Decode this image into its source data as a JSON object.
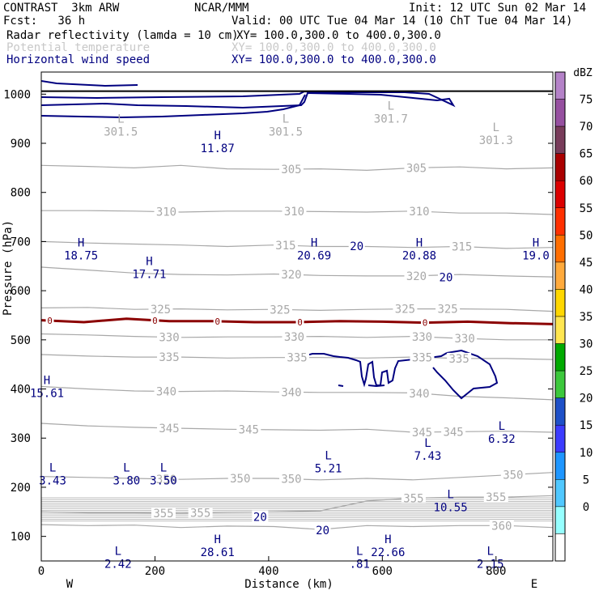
{
  "header": {
    "title": "CONTRAST  3km ARW",
    "center": "NCAR/MMM",
    "init": "Init: 12 UTC Sun 02 Mar 14",
    "fcst": "Fcst:   36 h",
    "valid": "Valid: 00 UTC Tue 04 Mar 14 (10 ChT Tue 04 Mar 14)",
    "fields": [
      {
        "label": "Radar reflectivity (lamda = 10 cm)",
        "xy": "XY= 100.0,300.0 to 400.0,300.0",
        "color": "#000000"
      },
      {
        "label": "Potential temperature",
        "xy": "XY= 100.0,300.0 to 400.0,300.0",
        "color": "#c8c8c8"
      },
      {
        "label": "Horizontal wind speed",
        "xy": "XY= 100.0,300.0 to 400.0,300.0",
        "color": "#000080"
      }
    ]
  },
  "chart_data": {
    "type": "cross-section contour",
    "xlabel": "Distance (km)",
    "ylabel": "Pressure (hPa)",
    "xlim": [
      0,
      900
    ],
    "ylim": [
      1045,
      50
    ],
    "x_ticks": [
      0,
      200,
      400,
      600,
      800
    ],
    "y_ticks": [
      100,
      200,
      300,
      400,
      500,
      600,
      700,
      800,
      900,
      1000
    ],
    "x_end_labels": {
      "left": "W",
      "right": "E"
    },
    "surface_pressure": 1006,
    "theta_contours": [
      {
        "value": "305",
        "p": [
          855,
          853,
          850,
          855,
          848,
          847,
          848,
          845,
          850,
          852,
          848,
          850
        ],
        "labels": [
          {
            "x": 440,
            "text": "305"
          },
          {
            "x": 660,
            "text": "305"
          }
        ]
      },
      {
        "value": "310",
        "p": [
          763,
          763,
          762,
          760,
          762,
          762,
          761,
          760,
          762,
          758,
          758,
          755
        ],
        "labels": [
          {
            "x": 220,
            "text": "310"
          },
          {
            "x": 445,
            "text": "310"
          },
          {
            "x": 665,
            "text": "310"
          }
        ]
      },
      {
        "value": "315",
        "p": [
          700,
          697,
          695,
          693,
          690,
          693,
          690,
          690,
          688,
          690,
          686,
          688
        ],
        "labels": [
          {
            "x": 430,
            "text": "315"
          },
          {
            "x": 740,
            "text": "315"
          }
        ]
      },
      {
        "value": "320",
        "p": [
          648,
          642,
          636,
          633,
          632,
          634,
          631,
          630,
          630,
          633,
          630,
          628
        ],
        "labels": [
          {
            "x": 440,
            "text": "320"
          },
          {
            "x": 660,
            "text": "320"
          }
        ]
      },
      {
        "value": "325",
        "p": [
          565,
          566,
          562,
          563,
          561,
          562,
          560,
          562,
          563,
          563,
          562,
          558
        ],
        "labels": [
          {
            "x": 210,
            "text": "325"
          },
          {
            "x": 420,
            "text": "325"
          },
          {
            "x": 640,
            "text": "325"
          },
          {
            "x": 715,
            "text": "325"
          }
        ]
      },
      {
        "value": "330",
        "p": [
          512,
          510,
          507,
          505,
          506,
          506,
          507,
          505,
          507,
          503,
          500,
          500
        ],
        "labels": [
          {
            "x": 225,
            "text": "330"
          },
          {
            "x": 445,
            "text": "330"
          },
          {
            "x": 670,
            "text": "330"
          },
          {
            "x": 745,
            "text": "330"
          }
        ]
      },
      {
        "value": "335",
        "p": [
          470,
          467,
          465,
          465,
          463,
          464,
          464,
          463,
          465,
          462,
          462,
          460
        ],
        "labels": [
          {
            "x": 225,
            "text": "335"
          },
          {
            "x": 450,
            "text": "335"
          },
          {
            "x": 670,
            "text": "335"
          },
          {
            "x": 735,
            "text": "335"
          }
        ]
      },
      {
        "value": "340",
        "p": [
          405,
          400,
          396,
          395,
          396,
          394,
          393,
          393,
          392,
          385,
          382,
          378
        ],
        "labels": [
          {
            "x": 220,
            "text": "340"
          },
          {
            "x": 440,
            "text": "340"
          },
          {
            "x": 665,
            "text": "340"
          }
        ]
      },
      {
        "value": "345",
        "p": [
          330,
          325,
          322,
          320,
          318,
          317,
          316,
          318,
          312,
          313,
          314,
          312
        ],
        "labels": [
          {
            "x": 225,
            "text": "345"
          },
          {
            "x": 365,
            "text": "345"
          },
          {
            "x": 670,
            "text": "345"
          },
          {
            "x": 725,
            "text": "345"
          }
        ]
      },
      {
        "value": "350",
        "p": [
          222,
          220,
          218,
          216,
          218,
          218,
          215,
          218,
          215,
          220,
          225,
          230
        ],
        "labels": [
          {
            "x": 220,
            "text": "350"
          },
          {
            "x": 350,
            "text": "350"
          },
          {
            "x": 440,
            "text": "350"
          },
          {
            "x": 830,
            "text": "350"
          }
        ]
      },
      {
        "value": "355",
        "p": [
          150,
          148,
          148,
          147,
          149,
          150,
          152,
          172,
          178,
          180,
          180,
          183
        ],
        "labels": [
          {
            "x": 215,
            "text": "355"
          },
          {
            "x": 280,
            "text": "355"
          },
          {
            "x": 655,
            "text": "355"
          },
          {
            "x": 800,
            "text": "355"
          }
        ]
      },
      {
        "value": "360",
        "p": [
          124,
          122,
          123,
          118,
          121,
          120,
          114,
          122,
          120,
          122,
          122,
          118
        ],
        "labels": [
          {
            "x": 810,
            "text": "360"
          }
        ]
      }
    ],
    "theta_extrema": [
      {
        "type": "L",
        "x": 140,
        "p": 942,
        "value": "301.5"
      },
      {
        "type": "L",
        "x": 430,
        "p": 942,
        "value": "301.5"
      },
      {
        "type": "L",
        "x": 615,
        "p": 968,
        "value": "301.7"
      },
      {
        "type": "L",
        "x": 800,
        "p": 925,
        "value": "301.3"
      }
    ],
    "wind_contours": [
      {
        "value": "20",
        "labels": [
          {
            "x": 385,
            "p": 140,
            "text": "20"
          },
          {
            "x": 495,
            "p": 113,
            "text": "20"
          },
          {
            "x": 555,
            "p": 691,
            "text": "20"
          },
          {
            "x": 712,
            "p": 627,
            "text": "20"
          }
        ]
      }
    ],
    "wind_extrema": [
      {
        "type": "L",
        "x": 135,
        "p": 62,
        "value": "2.42"
      },
      {
        "type": "H",
        "x": 310,
        "p": 86,
        "value": "28.61"
      },
      {
        "type": "L",
        "x": 560,
        "p": 62,
        "value": ".81"
      },
      {
        "type": "H",
        "x": 610,
        "p": 86,
        "value": "22.66"
      },
      {
        "type": "L",
        "x": 790,
        "p": 62,
        "value": "2.15"
      },
      {
        "type": "L",
        "x": 720,
        "p": 178,
        "value": "10.55"
      },
      {
        "type": "L",
        "x": 20,
        "p": 232,
        "value": "3.43"
      },
      {
        "type": "L",
        "x": 150,
        "p": 232,
        "value": "3.80"
      },
      {
        "type": "L",
        "x": 215,
        "p": 232,
        "value": "3.50"
      },
      {
        "type": "L",
        "x": 505,
        "p": 257,
        "value": "5.21"
      },
      {
        "type": "L",
        "x": 680,
        "p": 282,
        "value": "7.43"
      },
      {
        "type": "L",
        "x": 810,
        "p": 317,
        "value": "6.32"
      },
      {
        "type": "H",
        "x": 10,
        "p": 410,
        "value": "15.61"
      },
      {
        "type": "H",
        "x": 190,
        "p": 652,
        "value": "17.71"
      },
      {
        "type": "H",
        "x": 70,
        "p": 690,
        "value": "18.75"
      },
      {
        "type": "H",
        "x": 480,
        "p": 690,
        "value": "20.69"
      },
      {
        "type": "H",
        "x": 665,
        "p": 690,
        "value": "20.88"
      },
      {
        "type": "H",
        "x": 870,
        "p": 690,
        "value": "19.0"
      },
      {
        "type": "H",
        "x": 310,
        "p": 908,
        "value": "11.87"
      }
    ],
    "reflectivity_contours": [
      {
        "value": "0",
        "color": "#8b0000",
        "p": [
          540,
          536,
          543,
          538,
          538,
          536,
          536,
          538,
          537,
          535,
          537,
          534,
          532
        ],
        "labels": [
          {
            "x": 15,
            "text": "0"
          },
          {
            "x": 200,
            "text": "0"
          },
          {
            "x": 310,
            "text": "0"
          },
          {
            "x": 455,
            "text": "0"
          },
          {
            "x": 675,
            "text": "0"
          }
        ]
      }
    ],
    "colorbar": {
      "units": "dBZ",
      "levels": [
        "75",
        "70",
        "65",
        "60",
        "55",
        "50",
        "45",
        "40",
        "35",
        "30",
        "25",
        "20",
        "15",
        "10",
        "5",
        "0"
      ],
      "colors": [
        "#b482c8",
        "#9650a0",
        "#783c5a",
        "#aa0000",
        "#dc0000",
        "#ff3000",
        "#ff6e00",
        "#ffaa3c",
        "#ffd700",
        "#ffe650",
        "#00aa00",
        "#3cc83c",
        "#1e50c8",
        "#3c3cff",
        "#1e96ff",
        "#50c8ff",
        "#96ffff",
        "#ffffff"
      ]
    }
  }
}
